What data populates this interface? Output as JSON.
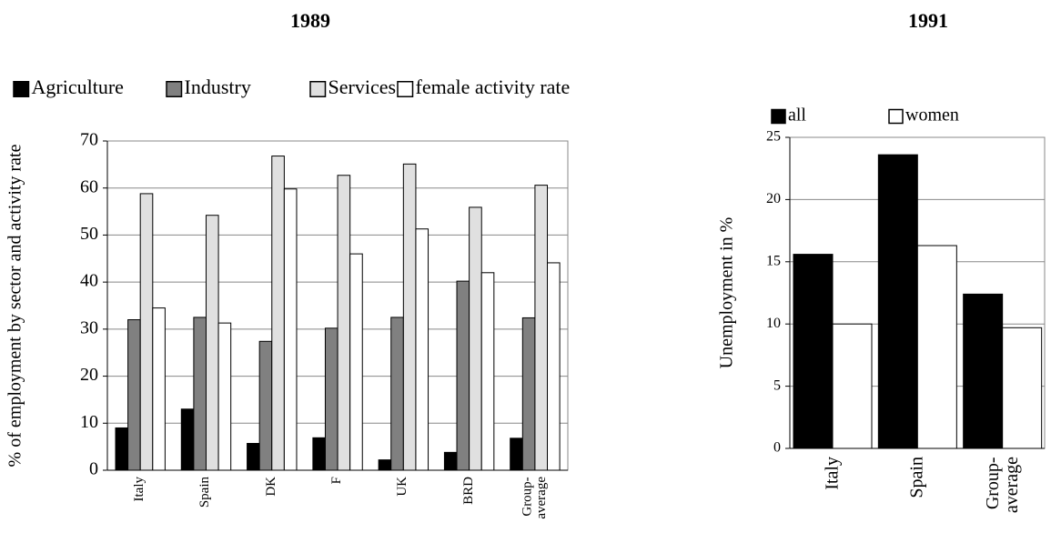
{
  "chart_data": [
    {
      "type": "bar",
      "title": "1989",
      "ylabel": "% of employment by sector and activity rate",
      "categories": [
        "Italy",
        "Spain",
        "DK",
        "F",
        "UK",
        "BRD",
        "Group-\naverage"
      ],
      "series": [
        {
          "name": "Agriculture",
          "color": "#000000",
          "values": [
            9,
            13,
            5.7,
            6.9,
            2.2,
            3.8,
            6.8
          ]
        },
        {
          "name": "Industry",
          "color": "#808080",
          "values": [
            32,
            32.5,
            27.4,
            30.2,
            32.5,
            40.2,
            32.4
          ]
        },
        {
          "name": "Services",
          "color": "#e0e0e0",
          "values": [
            58.8,
            54.2,
            66.8,
            62.7,
            65.1,
            55.9,
            60.6
          ]
        },
        {
          "name": "female activity rate",
          "color": "#ffffff",
          "values": [
            34.5,
            31.3,
            59.8,
            46,
            51.3,
            42,
            44.1
          ]
        }
      ],
      "ylim": [
        0,
        70
      ],
      "yticks": [
        0,
        10,
        20,
        30,
        40,
        50,
        60,
        70
      ],
      "grid": true,
      "legend": "top"
    },
    {
      "type": "bar",
      "title": "1991",
      "ylabel": "Unemployment in %",
      "categories": [
        "Italy",
        "Spain",
        "Group-\naverage"
      ],
      "series": [
        {
          "name": "all",
          "color": "#000000",
          "values": [
            15.6,
            23.6,
            12.4
          ]
        },
        {
          "name": "women",
          "color": "#ffffff",
          "values": [
            10,
            16.3,
            9.7
          ]
        }
      ],
      "ylim": [
        0,
        25
      ],
      "yticks": [
        0,
        5,
        10,
        15,
        20,
        25
      ],
      "grid": true,
      "legend": "top"
    }
  ]
}
